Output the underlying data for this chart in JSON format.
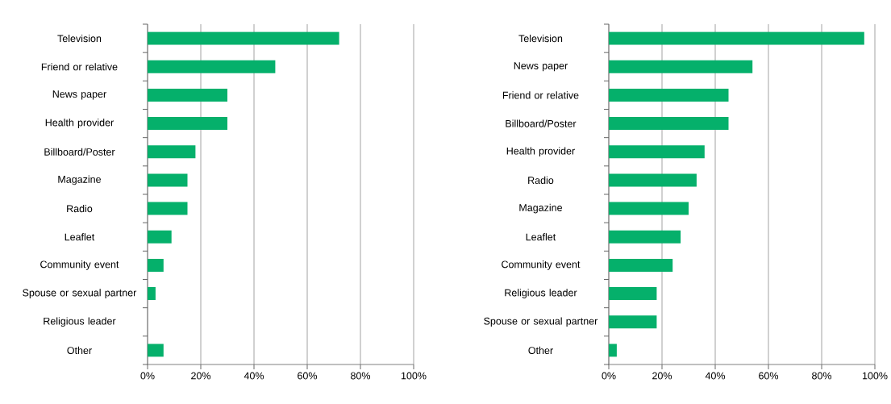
{
  "chart_data": [
    {
      "type": "bar",
      "orientation": "horizontal",
      "categories": [
        "Television",
        "Friend or relative",
        "News paper",
        "Health provider",
        "Billboard/Poster",
        "Magazine",
        "Radio",
        "Leaflet",
        "Community event",
        "Spouse or sexual partner",
        "Religious leader",
        "Other"
      ],
      "values": [
        72,
        48,
        30,
        30,
        18,
        15,
        15,
        9,
        6,
        3,
        0,
        6
      ],
      "color": "#05b06b",
      "xlim": [
        0,
        100
      ],
      "xticks": [
        {
          "value": 0,
          "label": "0%"
        },
        {
          "value": 20,
          "label": "20%"
        },
        {
          "value": 40,
          "label": "40%"
        },
        {
          "value": 60,
          "label": "60%"
        },
        {
          "value": 80,
          "label": "80%"
        },
        {
          "value": 100,
          "label": "100%"
        }
      ],
      "grid": "x"
    },
    {
      "type": "bar",
      "orientation": "horizontal",
      "categories": [
        "Television",
        "News paper",
        "Friend or relative",
        "Billboard/Poster",
        "Health provider",
        "Radio",
        "Magazine",
        "Leaflet",
        "Community event",
        "Religious leader",
        "Spouse or sexual partner",
        "Other"
      ],
      "values": [
        96,
        54,
        45,
        45,
        36,
        33,
        30,
        27,
        24,
        18,
        18,
        3
      ],
      "color": "#05b06b",
      "xlim": [
        0,
        100
      ],
      "xticks": [
        {
          "value": 0,
          "label": "0%"
        },
        {
          "value": 20,
          "label": "20%"
        },
        {
          "value": 40,
          "label": "40%"
        },
        {
          "value": 60,
          "label": "60%"
        },
        {
          "value": 80,
          "label": "80%"
        },
        {
          "value": 100,
          "label": "100%"
        }
      ],
      "grid": "x"
    }
  ]
}
